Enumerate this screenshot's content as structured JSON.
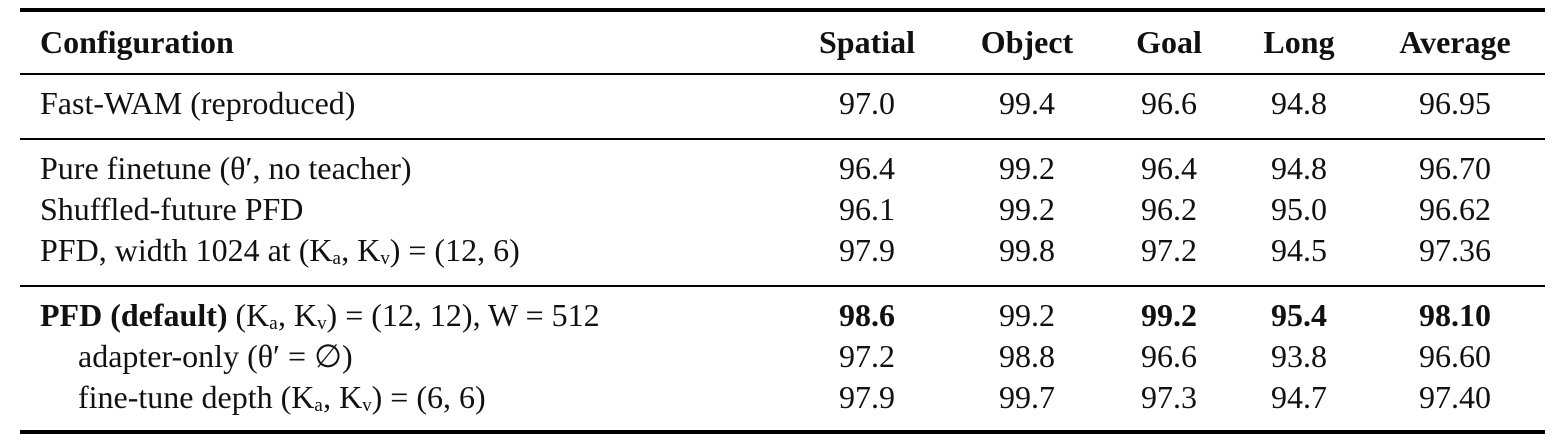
{
  "table": {
    "header": [
      "Configuration",
      "Spatial",
      "Object",
      "Goal",
      "Long",
      "Average"
    ],
    "groups": [
      [
        {
          "config": "Fast-WAM (reproduced)",
          "values": [
            "97.0",
            "99.4",
            "96.6",
            "94.8",
            "96.95"
          ]
        }
      ],
      [
        {
          "config": "Pure finetune (θ′, no teacher)",
          "values": [
            "96.4",
            "99.2",
            "96.4",
            "94.8",
            "96.70"
          ]
        },
        {
          "config": "Shuffled-future PFD",
          "values": [
            "96.1",
            "99.2",
            "96.2",
            "95.0",
            "96.62"
          ]
        },
        {
          "config": "PFD, width 1024 at (Kₐ, Kᵥ) = (12, 6)",
          "values": [
            "97.9",
            "99.8",
            "97.2",
            "94.5",
            "97.36"
          ]
        }
      ],
      [
        {
          "config_bold": "PFD (default)",
          "config": "(Kₐ, Kᵥ) = (12, 12), W = 512",
          "values": [
            "98.6",
            "99.2",
            "99.2",
            "95.4",
            "98.10"
          ],
          "bold_cols": [
            0,
            2,
            3,
            4
          ]
        },
        {
          "config": "adapter-only (θ′ = ∅)",
          "indent": true,
          "values": [
            "97.2",
            "98.8",
            "96.6",
            "93.8",
            "96.60"
          ]
        },
        {
          "config": "fine-tune depth (Kₐ, Kᵥ) = (6, 6)",
          "indent": true,
          "values": [
            "97.9",
            "99.7",
            "97.3",
            "94.7",
            "97.40"
          ]
        }
      ]
    ]
  }
}
